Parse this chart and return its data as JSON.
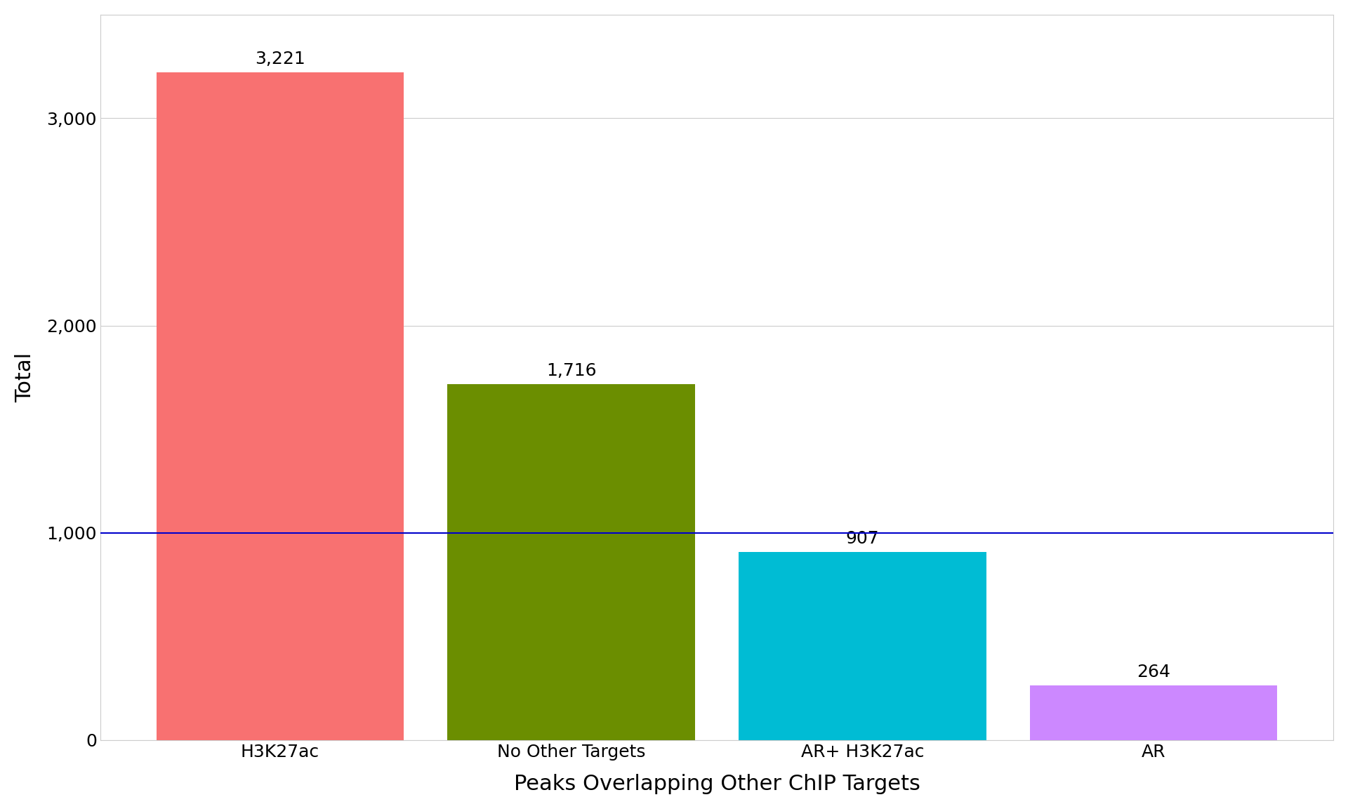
{
  "categories": [
    "H3K27ac",
    "No Other Targets",
    "AR+ H3K27ac",
    "AR"
  ],
  "values": [
    3221,
    1716,
    907,
    264
  ],
  "bar_colors": [
    "#F87171",
    "#6B8E00",
    "#00BCD4",
    "#CC88FF"
  ],
  "bar_labels": [
    "3,221",
    "1,716",
    "907",
    "264"
  ],
  "xlabel": "Peaks Overlapping Other ChIP Targets",
  "ylabel": "Total",
  "ylim": [
    0,
    3500
  ],
  "hline_y": 1000,
  "hline_color": "#0000CC",
  "background_color": "#FFFFFF",
  "grid_color": "#CCCCCC",
  "xlabel_fontsize": 22,
  "ylabel_fontsize": 22,
  "tick_fontsize": 18,
  "bar_label_fontsize": 18,
  "ytick_values": [
    0,
    1000,
    2000,
    3000
  ],
  "bar_width": 0.85,
  "spine_color": "#CCCCCC",
  "hline_linewidth": 1.5
}
